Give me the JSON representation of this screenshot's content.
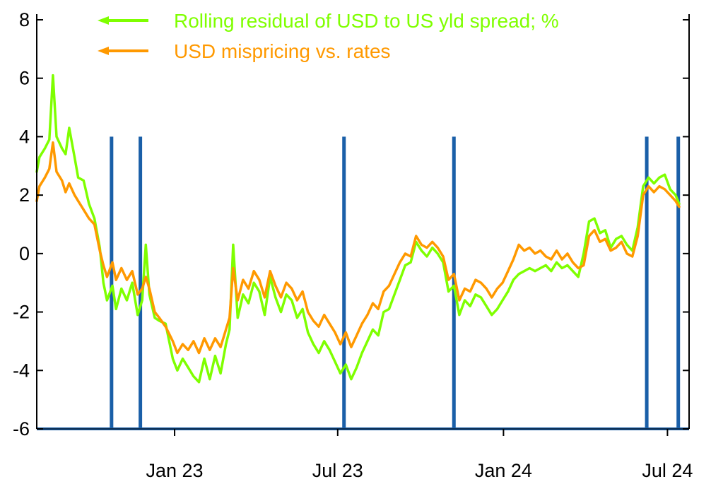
{
  "chart_data": {
    "type": "line",
    "title": "",
    "xlabel": "",
    "ylabel": "",
    "ylim": [
      -6,
      8
    ],
    "yticks": [
      -6,
      -4,
      -2,
      0,
      2,
      4,
      6,
      8
    ],
    "xlim": [
      "2022-08-01",
      "2024-07-25"
    ],
    "xticks": [
      {
        "date": "2023-01-01",
        "label": "Jan 23"
      },
      {
        "date": "2023-07-01",
        "label": "Jul 23"
      },
      {
        "date": "2024-01-01",
        "label": "Jan 24"
      },
      {
        "date": "2024-07-01",
        "label": "Jul 24"
      }
    ],
    "grid": false,
    "legend_position": "top-left",
    "series": [
      {
        "name": "Rolling residual of USD to US yld spread; %",
        "color": "#7fff00",
        "points": [
          [
            "2022-08-01",
            2.8
          ],
          [
            "2022-08-04",
            3.3
          ],
          [
            "2022-08-10",
            3.6
          ],
          [
            "2022-08-15",
            3.9
          ],
          [
            "2022-08-19",
            6.1
          ],
          [
            "2022-08-23",
            4.0
          ],
          [
            "2022-08-29",
            3.6
          ],
          [
            "2022-09-02",
            3.4
          ],
          [
            "2022-09-06",
            4.3
          ],
          [
            "2022-09-12",
            3.3
          ],
          [
            "2022-09-16",
            2.6
          ],
          [
            "2022-09-22",
            2.5
          ],
          [
            "2022-09-28",
            1.7
          ],
          [
            "2022-10-04",
            1.2
          ],
          [
            "2022-10-10",
            0.2
          ],
          [
            "2022-10-14",
            -1.0
          ],
          [
            "2022-10-18",
            -1.6
          ],
          [
            "2022-10-24",
            -1.1
          ],
          [
            "2022-10-28",
            -1.9
          ],
          [
            "2022-11-03",
            -1.2
          ],
          [
            "2022-11-09",
            -1.6
          ],
          [
            "2022-11-15",
            -1.0
          ],
          [
            "2022-11-21",
            -2.1
          ],
          [
            "2022-11-26",
            -1.6
          ],
          [
            "2022-11-30",
            0.3
          ],
          [
            "2022-12-04",
            -1.4
          ],
          [
            "2022-12-10",
            -2.2
          ],
          [
            "2022-12-15",
            -2.3
          ],
          [
            "2022-12-22",
            -2.4
          ],
          [
            "2022-12-30",
            -3.6
          ],
          [
            "2023-01-04",
            -4.0
          ],
          [
            "2023-01-10",
            -3.6
          ],
          [
            "2023-01-16",
            -3.9
          ],
          [
            "2023-01-22",
            -4.2
          ],
          [
            "2023-01-28",
            -4.4
          ],
          [
            "2023-02-03",
            -3.6
          ],
          [
            "2023-02-09",
            -4.3
          ],
          [
            "2023-02-15",
            -3.5
          ],
          [
            "2023-02-21",
            -4.1
          ],
          [
            "2023-02-27",
            -3.1
          ],
          [
            "2023-03-03",
            -2.6
          ],
          [
            "2023-03-07",
            0.3
          ],
          [
            "2023-03-12",
            -2.2
          ],
          [
            "2023-03-18",
            -1.4
          ],
          [
            "2023-03-24",
            -1.7
          ],
          [
            "2023-03-30",
            -1.0
          ],
          [
            "2023-04-05",
            -1.3
          ],
          [
            "2023-04-11",
            -2.1
          ],
          [
            "2023-04-17",
            -0.8
          ],
          [
            "2023-04-23",
            -1.5
          ],
          [
            "2023-04-29",
            -2.0
          ],
          [
            "2023-05-05",
            -1.4
          ],
          [
            "2023-05-11",
            -1.6
          ],
          [
            "2023-05-17",
            -2.2
          ],
          [
            "2023-05-23",
            -1.9
          ],
          [
            "2023-05-29",
            -2.7
          ],
          [
            "2023-06-04",
            -3.1
          ],
          [
            "2023-06-10",
            -3.4
          ],
          [
            "2023-06-16",
            -3.0
          ],
          [
            "2023-06-22",
            -3.3
          ],
          [
            "2023-06-28",
            -3.7
          ],
          [
            "2023-07-04",
            -4.1
          ],
          [
            "2023-07-10",
            -3.8
          ],
          [
            "2023-07-16",
            -4.3
          ],
          [
            "2023-07-22",
            -3.9
          ],
          [
            "2023-07-28",
            -3.4
          ],
          [
            "2023-08-03",
            -3.0
          ],
          [
            "2023-08-09",
            -2.6
          ],
          [
            "2023-08-15",
            -2.8
          ],
          [
            "2023-08-21",
            -2.0
          ],
          [
            "2023-08-27",
            -1.9
          ],
          [
            "2023-09-02",
            -1.4
          ],
          [
            "2023-09-08",
            -0.9
          ],
          [
            "2023-09-14",
            -0.4
          ],
          [
            "2023-09-20",
            -0.3
          ],
          [
            "2023-09-26",
            0.4
          ],
          [
            "2023-10-02",
            0.1
          ],
          [
            "2023-10-08",
            -0.1
          ],
          [
            "2023-10-14",
            0.2
          ],
          [
            "2023-10-20",
            0.0
          ],
          [
            "2023-10-26",
            -0.3
          ],
          [
            "2023-11-01",
            -1.3
          ],
          [
            "2023-11-07",
            -1.1
          ],
          [
            "2023-11-13",
            -2.1
          ],
          [
            "2023-11-19",
            -1.6
          ],
          [
            "2023-11-25",
            -1.8
          ],
          [
            "2023-12-01",
            -1.4
          ],
          [
            "2023-12-07",
            -1.5
          ],
          [
            "2023-12-13",
            -1.8
          ],
          [
            "2023-12-19",
            -2.1
          ],
          [
            "2023-12-25",
            -1.9
          ],
          [
            "2023-12-31",
            -1.6
          ],
          [
            "2024-01-06",
            -1.3
          ],
          [
            "2024-01-12",
            -0.9
          ],
          [
            "2024-01-18",
            -0.7
          ],
          [
            "2024-01-24",
            -0.6
          ],
          [
            "2024-01-30",
            -0.5
          ],
          [
            "2024-02-05",
            -0.6
          ],
          [
            "2024-02-11",
            -0.5
          ],
          [
            "2024-02-17",
            -0.4
          ],
          [
            "2024-02-23",
            -0.6
          ],
          [
            "2024-02-29",
            -0.3
          ],
          [
            "2024-03-06",
            -0.5
          ],
          [
            "2024-03-12",
            -0.4
          ],
          [
            "2024-03-18",
            -0.6
          ],
          [
            "2024-03-24",
            -0.8
          ],
          [
            "2024-03-30",
            0.0
          ],
          [
            "2024-04-05",
            1.1
          ],
          [
            "2024-04-11",
            1.2
          ],
          [
            "2024-04-17",
            0.7
          ],
          [
            "2024-04-23",
            0.8
          ],
          [
            "2024-04-29",
            0.2
          ],
          [
            "2024-05-05",
            0.5
          ],
          [
            "2024-05-11",
            0.6
          ],
          [
            "2024-05-17",
            0.3
          ],
          [
            "2024-05-23",
            0.1
          ],
          [
            "2024-05-29",
            0.9
          ],
          [
            "2024-06-04",
            2.3
          ],
          [
            "2024-06-10",
            2.6
          ],
          [
            "2024-06-16",
            2.4
          ],
          [
            "2024-06-22",
            2.6
          ],
          [
            "2024-06-28",
            2.7
          ],
          [
            "2024-07-04",
            2.2
          ],
          [
            "2024-07-10",
            2.0
          ],
          [
            "2024-07-14",
            1.7
          ]
        ]
      },
      {
        "name": "USD mispricing vs. rates",
        "color": "#ff9900",
        "points": [
          [
            "2022-08-01",
            1.8
          ],
          [
            "2022-08-04",
            2.3
          ],
          [
            "2022-08-10",
            2.6
          ],
          [
            "2022-08-15",
            2.9
          ],
          [
            "2022-08-19",
            3.8
          ],
          [
            "2022-08-23",
            2.8
          ],
          [
            "2022-08-29",
            2.5
          ],
          [
            "2022-09-02",
            2.1
          ],
          [
            "2022-09-06",
            2.4
          ],
          [
            "2022-09-12",
            2.0
          ],
          [
            "2022-09-16",
            1.8
          ],
          [
            "2022-09-22",
            1.5
          ],
          [
            "2022-09-28",
            1.2
          ],
          [
            "2022-10-04",
            1.0
          ],
          [
            "2022-10-10",
            0.1
          ],
          [
            "2022-10-14",
            -0.4
          ],
          [
            "2022-10-18",
            -0.8
          ],
          [
            "2022-10-24",
            -0.3
          ],
          [
            "2022-10-28",
            -0.9
          ],
          [
            "2022-11-03",
            -0.5
          ],
          [
            "2022-11-09",
            -0.9
          ],
          [
            "2022-11-15",
            -0.6
          ],
          [
            "2022-11-21",
            -1.4
          ],
          [
            "2022-11-26",
            -1.2
          ],
          [
            "2022-11-30",
            -0.8
          ],
          [
            "2022-12-04",
            -1.2
          ],
          [
            "2022-12-10",
            -2.0
          ],
          [
            "2022-12-15",
            -2.2
          ],
          [
            "2022-12-22",
            -2.5
          ],
          [
            "2022-12-30",
            -3.0
          ],
          [
            "2023-01-04",
            -3.4
          ],
          [
            "2023-01-10",
            -3.1
          ],
          [
            "2023-01-16",
            -3.3
          ],
          [
            "2023-01-22",
            -3.0
          ],
          [
            "2023-01-28",
            -3.4
          ],
          [
            "2023-02-03",
            -2.9
          ],
          [
            "2023-02-09",
            -3.3
          ],
          [
            "2023-02-15",
            -2.9
          ],
          [
            "2023-02-21",
            -3.2
          ],
          [
            "2023-02-27",
            -2.6
          ],
          [
            "2023-03-03",
            -2.2
          ],
          [
            "2023-03-07",
            -0.5
          ],
          [
            "2023-03-12",
            -1.6
          ],
          [
            "2023-03-18",
            -0.9
          ],
          [
            "2023-03-24",
            -1.2
          ],
          [
            "2023-03-30",
            -0.6
          ],
          [
            "2023-04-05",
            -0.9
          ],
          [
            "2023-04-11",
            -1.5
          ],
          [
            "2023-04-17",
            -0.6
          ],
          [
            "2023-04-23",
            -1.1
          ],
          [
            "2023-04-29",
            -1.5
          ],
          [
            "2023-05-05",
            -1.0
          ],
          [
            "2023-05-11",
            -1.2
          ],
          [
            "2023-05-17",
            -1.6
          ],
          [
            "2023-05-23",
            -1.3
          ],
          [
            "2023-05-29",
            -2.0
          ],
          [
            "2023-06-04",
            -2.3
          ],
          [
            "2023-06-10",
            -2.5
          ],
          [
            "2023-06-16",
            -2.1
          ],
          [
            "2023-06-22",
            -2.4
          ],
          [
            "2023-06-28",
            -2.7
          ],
          [
            "2023-07-04",
            -3.1
          ],
          [
            "2023-07-10",
            -2.7
          ],
          [
            "2023-07-16",
            -3.2
          ],
          [
            "2023-07-22",
            -2.8
          ],
          [
            "2023-07-28",
            -2.4
          ],
          [
            "2023-08-03",
            -2.1
          ],
          [
            "2023-08-09",
            -1.7
          ],
          [
            "2023-08-15",
            -1.9
          ],
          [
            "2023-08-21",
            -1.3
          ],
          [
            "2023-08-27",
            -1.1
          ],
          [
            "2023-09-02",
            -0.7
          ],
          [
            "2023-09-08",
            -0.3
          ],
          [
            "2023-09-14",
            0.0
          ],
          [
            "2023-09-20",
            -0.1
          ],
          [
            "2023-09-26",
            0.6
          ],
          [
            "2023-10-02",
            0.3
          ],
          [
            "2023-10-08",
            0.2
          ],
          [
            "2023-10-14",
            0.4
          ],
          [
            "2023-10-20",
            0.2
          ],
          [
            "2023-10-26",
            -0.1
          ],
          [
            "2023-11-01",
            -0.9
          ],
          [
            "2023-11-07",
            -0.7
          ],
          [
            "2023-11-13",
            -1.6
          ],
          [
            "2023-11-19",
            -1.2
          ],
          [
            "2023-11-25",
            -1.3
          ],
          [
            "2023-12-01",
            -0.9
          ],
          [
            "2023-12-07",
            -1.0
          ],
          [
            "2023-12-13",
            -1.2
          ],
          [
            "2023-12-19",
            -1.5
          ],
          [
            "2023-12-25",
            -1.2
          ],
          [
            "2023-12-31",
            -1.0
          ],
          [
            "2024-01-06",
            -0.6
          ],
          [
            "2024-01-12",
            -0.2
          ],
          [
            "2024-01-18",
            0.3
          ],
          [
            "2024-01-24",
            0.1
          ],
          [
            "2024-01-30",
            0.2
          ],
          [
            "2024-02-05",
            0.0
          ],
          [
            "2024-02-11",
            0.1
          ],
          [
            "2024-02-17",
            -0.1
          ],
          [
            "2024-02-23",
            -0.2
          ],
          [
            "2024-02-29",
            0.1
          ],
          [
            "2024-03-06",
            -0.2
          ],
          [
            "2024-03-12",
            0.0
          ],
          [
            "2024-03-18",
            -0.3
          ],
          [
            "2024-03-24",
            -0.5
          ],
          [
            "2024-03-30",
            -0.4
          ],
          [
            "2024-04-05",
            0.6
          ],
          [
            "2024-04-11",
            0.8
          ],
          [
            "2024-04-17",
            0.4
          ],
          [
            "2024-04-23",
            0.5
          ],
          [
            "2024-04-29",
            0.1
          ],
          [
            "2024-05-05",
            0.2
          ],
          [
            "2024-05-11",
            0.4
          ],
          [
            "2024-05-17",
            0.0
          ],
          [
            "2024-05-23",
            -0.1
          ],
          [
            "2024-05-29",
            0.6
          ],
          [
            "2024-06-04",
            2.0
          ],
          [
            "2024-06-10",
            2.3
          ],
          [
            "2024-06-16",
            2.1
          ],
          [
            "2024-06-22",
            2.3
          ],
          [
            "2024-06-28",
            2.2
          ],
          [
            "2024-07-04",
            2.0
          ],
          [
            "2024-07-10",
            1.8
          ],
          [
            "2024-07-14",
            1.6
          ]
        ]
      }
    ],
    "bars": {
      "color": "#1a5fa8",
      "base": -6,
      "top": 4,
      "dates": [
        "2022-10-23",
        "2022-11-24",
        "2023-07-08",
        "2023-11-07",
        "2024-06-08",
        "2024-07-13"
      ]
    }
  }
}
